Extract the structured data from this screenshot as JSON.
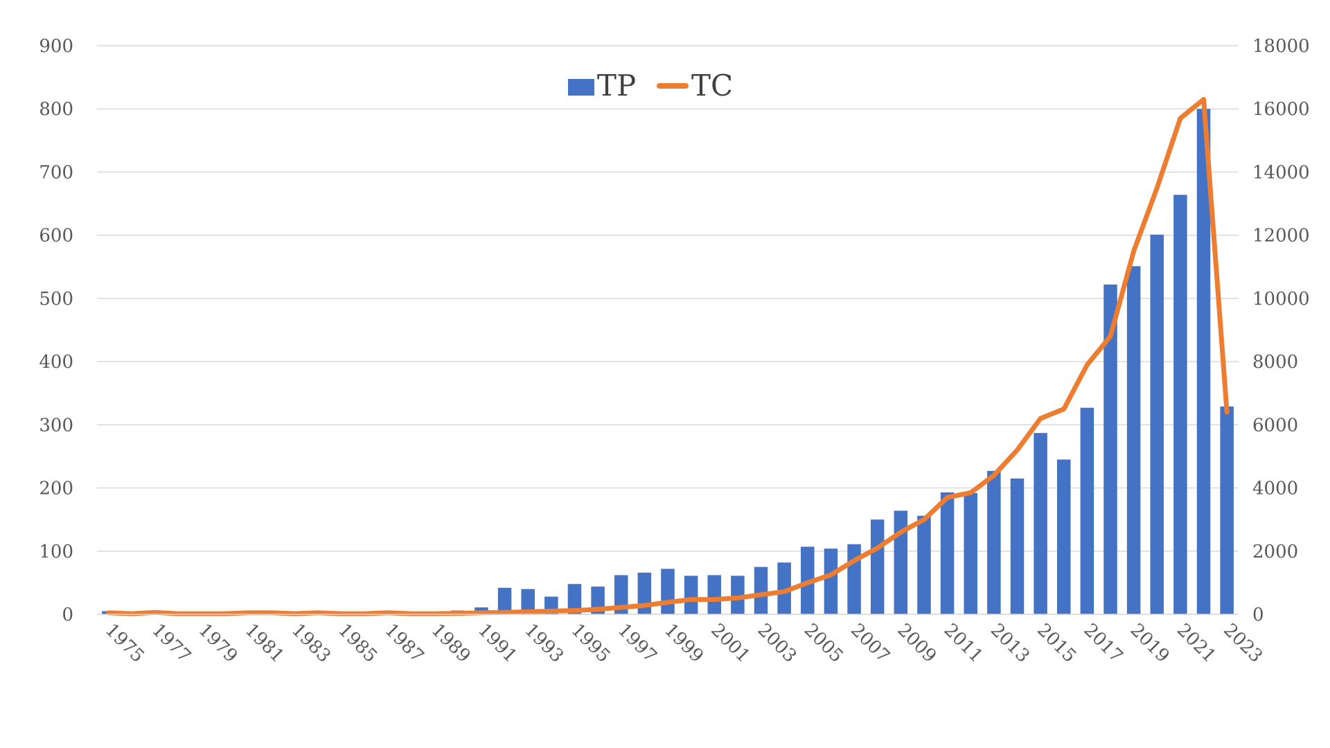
{
  "chart_data": {
    "type": "bar",
    "title": "",
    "xlabel": "",
    "ylabel": "",
    "categories": [
      "1975",
      "1976",
      "1977",
      "1978",
      "1979",
      "1980",
      "1981",
      "1982",
      "1983",
      "1984",
      "1985",
      "1986",
      "1987",
      "1988",
      "1989",
      "1990",
      "1991",
      "1992",
      "1993",
      "1994",
      "1995",
      "1996",
      "1997",
      "1998",
      "1999",
      "2000",
      "2001",
      "2002",
      "2003",
      "2004",
      "2005",
      "2006",
      "2007",
      "2008",
      "2009",
      "2010",
      "2011",
      "2012",
      "2013",
      "2014",
      "2015",
      "2016",
      "2017",
      "2018",
      "2019",
      "2020",
      "2021",
      "2022",
      "2023"
    ],
    "x_tick_labels": [
      "1975",
      "1977",
      "1979",
      "1981",
      "1983",
      "1985",
      "1987",
      "1989",
      "1991",
      "1993",
      "1995",
      "1997",
      "1999",
      "2001",
      "2003",
      "2005",
      "2007",
      "2009",
      "2011",
      "2013",
      "2015",
      "2017",
      "2019",
      "2021",
      "2023"
    ],
    "series": [
      {
        "name": "TP",
        "kind": "bar",
        "axis": "left",
        "values": [
          5,
          1,
          2,
          1,
          1,
          1,
          2,
          2,
          1,
          2,
          1,
          1,
          2,
          1,
          1,
          6,
          11,
          42,
          40,
          28,
          48,
          44,
          62,
          66,
          72,
          61,
          62,
          61,
          75,
          82,
          107,
          104,
          111,
          150,
          164,
          156,
          193,
          192,
          227,
          215,
          287,
          245,
          327,
          522,
          551,
          601,
          664,
          800,
          329
        ]
      },
      {
        "name": "TC",
        "kind": "line",
        "axis": "right",
        "values": [
          50,
          20,
          60,
          20,
          20,
          20,
          50,
          50,
          20,
          50,
          20,
          20,
          50,
          20,
          20,
          30,
          50,
          60,
          80,
          100,
          120,
          160,
          220,
          280,
          380,
          470,
          470,
          520,
          620,
          720,
          1000,
          1250,
          1700,
          2100,
          2600,
          3000,
          3700,
          3850,
          4400,
          5200,
          6200,
          6500,
          7900,
          8800,
          11500,
          13500,
          15700,
          16300,
          6400
        ]
      }
    ],
    "y_left": {
      "range": [
        0,
        900
      ],
      "ticks": [
        "0",
        "100",
        "200",
        "300",
        "400",
        "500",
        "600",
        "700",
        "800",
        "900"
      ]
    },
    "y_right": {
      "range": [
        0,
        18000
      ],
      "ticks": [
        "0",
        "2000",
        "4000",
        "6000",
        "8000",
        "10000",
        "12000",
        "14000",
        "16000",
        "18000"
      ]
    },
    "grid": true,
    "legend_position": "top-center",
    "colors": {
      "TP": "#4472C4",
      "TC": "#ED7D31",
      "grid": "#D9D9D9",
      "tick_text": "#595959"
    }
  }
}
